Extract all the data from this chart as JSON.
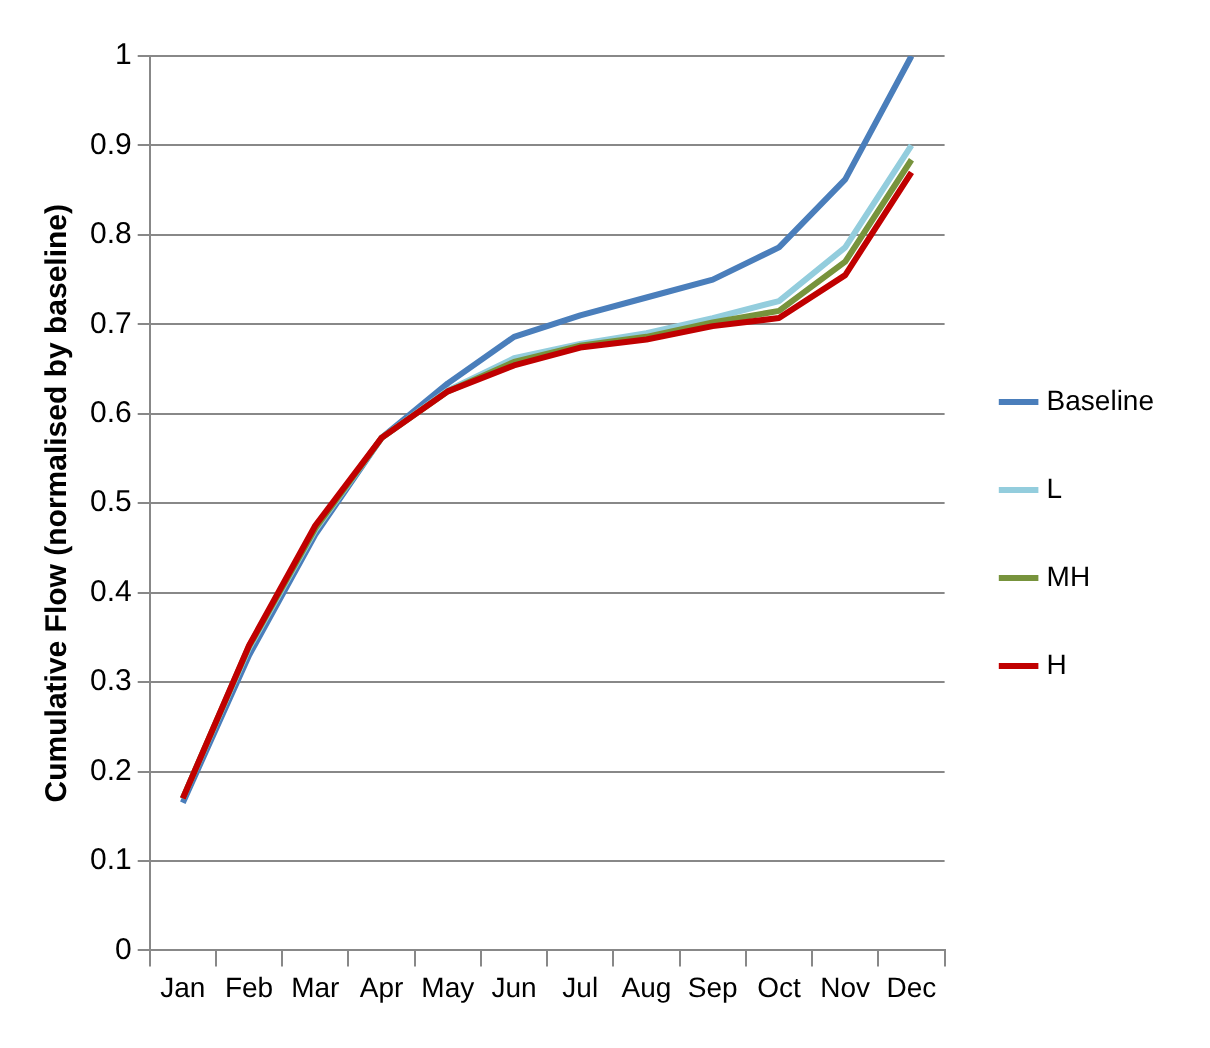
{
  "chart_data": {
    "type": "line",
    "ylabel": "Cumulative Flow (normalised by baseline)",
    "categories": [
      "Jan",
      "Feb",
      "Mar",
      "Apr",
      "May",
      "Jun",
      "Jul",
      "Aug",
      "Sep",
      "Oct",
      "Nov",
      "Dec"
    ],
    "series": [
      {
        "name": "Baseline",
        "color": "#4a7ebb",
        "values": [
          0.165,
          0.33,
          0.465,
          0.573,
          0.634,
          0.686,
          0.71,
          0.73,
          0.75,
          0.786,
          0.862,
          1.0
        ]
      },
      {
        "name": "L",
        "color": "#93cddd",
        "values": [
          0.17,
          0.338,
          0.47,
          0.573,
          0.626,
          0.662,
          0.678,
          0.69,
          0.707,
          0.726,
          0.786,
          0.9
        ]
      },
      {
        "name": "MH",
        "color": "#77933c",
        "values": [
          0.17,
          0.34,
          0.472,
          0.573,
          0.625,
          0.658,
          0.676,
          0.686,
          0.702,
          0.715,
          0.77,
          0.884
        ]
      },
      {
        "name": "H",
        "color": "#c00000",
        "values": [
          0.17,
          0.341,
          0.475,
          0.573,
          0.625,
          0.654,
          0.674,
          0.683,
          0.698,
          0.707,
          0.755,
          0.87
        ]
      }
    ],
    "ylim": [
      0,
      1
    ],
    "yticks": [
      0,
      0.1,
      0.2,
      0.3,
      0.4,
      0.5,
      0.6,
      0.7,
      0.8,
      0.9,
      1
    ],
    "grid": "y",
    "legend": "right",
    "marker": "none",
    "line_style": "solid"
  }
}
